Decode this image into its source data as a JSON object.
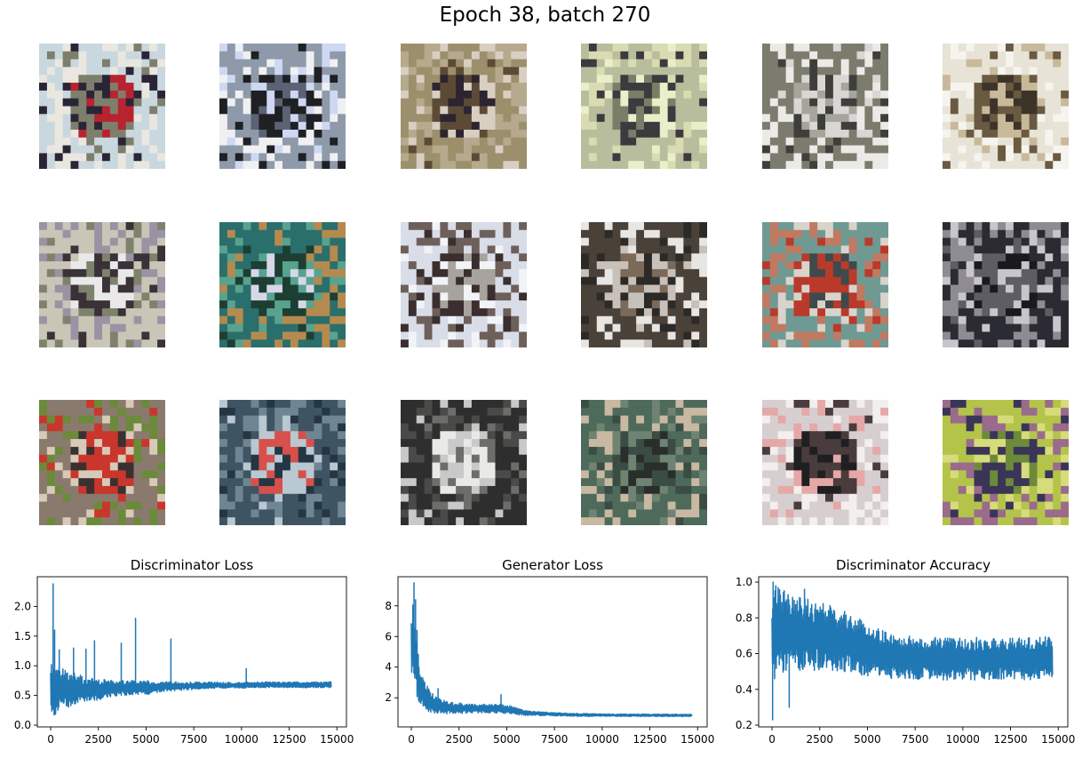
{
  "figure": {
    "title": "Epoch 38, batch 270",
    "line_color": "#1f77b4"
  },
  "sample_images": [
    {
      "palette": [
        "#c9d7df",
        "#7d7f6c",
        "#2a2536",
        "#b8232f",
        "#e9e7df"
      ]
    },
    {
      "palette": [
        "#8e9aa9",
        "#1f2024",
        "#cfd8f2",
        "#5a6274",
        "#f0f0f2"
      ]
    },
    {
      "palette": [
        "#9c8f6c",
        "#5d4a35",
        "#d8cfc2",
        "#2c2430",
        "#b7a98d"
      ]
    },
    {
      "palette": [
        "#b8bd9d",
        "#3b3a3e",
        "#e9efc9",
        "#7b7d67",
        "#d9dcb0"
      ]
    },
    {
      "palette": [
        "#7c7c6e",
        "#d9d6d4",
        "#3e3f3b",
        "#a6a59b",
        "#eceae6"
      ]
    },
    {
      "palette": [
        "#e7e3d6",
        "#6a5a42",
        "#c8b99b",
        "#3d3429",
        "#f6f4ee"
      ]
    },
    {
      "palette": [
        "#c9c6b8",
        "#3a3236",
        "#7e826b",
        "#e9e9ea",
        "#9b92a3"
      ]
    },
    {
      "palette": [
        "#2a6f6b",
        "#1d3f33",
        "#58a28f",
        "#d6d7e7",
        "#b58a4f"
      ]
    },
    {
      "palette": [
        "#d9dde8",
        "#3a2f2e",
        "#f2f3f7",
        "#a8a39c",
        "#6d605a"
      ]
    },
    {
      "palette": [
        "#4a4239",
        "#c8c1b9",
        "#2c2a26",
        "#7b6a5a",
        "#e8e6e3"
      ]
    },
    {
      "palette": [
        "#6f9a93",
        "#b93a2b",
        "#d8d4cc",
        "#3f4a4b",
        "#c07a62"
      ]
    },
    {
      "palette": [
        "#2b2b33",
        "#5e5d63",
        "#c8c6cc",
        "#1a1a1d",
        "#8f8b93"
      ]
    },
    {
      "palette": [
        "#8a7a6e",
        "#c9362c",
        "#d9c9b9",
        "#3a3030",
        "#6b8a3a"
      ]
    },
    {
      "palette": [
        "#3f5463",
        "#b9c8d1",
        "#243642",
        "#d7504b",
        "#6f8692"
      ]
    },
    {
      "palette": [
        "#2e2e2e",
        "#c9c9c9",
        "#6e6d69",
        "#e9e9e8",
        "#4a4a48"
      ]
    },
    {
      "palette": [
        "#4d6a5a",
        "#3a4c44",
        "#6f8372",
        "#2a2e2a",
        "#c9b9a2"
      ]
    },
    {
      "palette": [
        "#d7cfcf",
        "#4a3c3c",
        "#e6a7a7",
        "#1f1f22",
        "#f2efee"
      ]
    },
    {
      "palette": [
        "#b4c44a",
        "#3a3458",
        "#d7dc7a",
        "#6c8a39",
        "#9a6b8b"
      ]
    }
  ],
  "chart_data": [
    {
      "type": "line",
      "title": "Discriminator Loss",
      "xlabel": "",
      "ylabel": "",
      "xlim": [
        -700,
        15500
      ],
      "ylim": [
        -0.03,
        2.5
      ],
      "xticks": [
        "0",
        "2500",
        "5000",
        "7500",
        "10000",
        "12500",
        "15000"
      ],
      "yticks": [
        "0.0",
        "0.5",
        "1.0",
        "1.5",
        "2.0"
      ],
      "series": [
        {
          "x": [
            0,
            100,
            150,
            250,
            400,
            600,
            1000,
            1500,
            2000,
            2500,
            3000,
            4000,
            5000,
            6000,
            7000,
            8000,
            9000,
            10000,
            11000,
            12000,
            13000,
            14000,
            14700
          ],
          "center": [
            0.65,
            0.6,
            0.6,
            0.62,
            0.6,
            0.6,
            0.6,
            0.6,
            0.6,
            0.6,
            0.62,
            0.62,
            0.63,
            0.65,
            0.66,
            0.67,
            0.67,
            0.67,
            0.68,
            0.68,
            0.68,
            0.68,
            0.68
          ],
          "spread": [
            0.45,
            0.5,
            0.5,
            0.45,
            0.4,
            0.35,
            0.3,
            0.25,
            0.2,
            0.18,
            0.15,
            0.13,
            0.12,
            0.08,
            0.07,
            0.06,
            0.05,
            0.05,
            0.05,
            0.05,
            0.05,
            0.05,
            0.05
          ],
          "spikes": [
            [
              130,
              2.38
            ],
            [
              210,
              1.6
            ],
            [
              450,
              1.27
            ],
            [
              1200,
              1.3
            ],
            [
              1850,
              1.28
            ],
            [
              2300,
              1.42
            ],
            [
              3700,
              1.38
            ],
            [
              4450,
              1.8
            ],
            [
              6300,
              1.45
            ],
            [
              10250,
              0.95
            ]
          ]
        }
      ]
    },
    {
      "type": "line",
      "title": "Generator Loss",
      "xlabel": "",
      "ylabel": "",
      "xlim": [
        -700,
        15500
      ],
      "ylim": [
        0.1,
        9.9
      ],
      "xticks": [
        "0",
        "2500",
        "5000",
        "7500",
        "10000",
        "12500",
        "15000"
      ],
      "yticks": [
        "2",
        "4",
        "6",
        "8"
      ],
      "series": [
        {
          "x": [
            0,
            100,
            150,
            250,
            400,
            600,
            1000,
            1500,
            2000,
            2500,
            3000,
            4000,
            5000,
            6000,
            7000,
            8000,
            9000,
            10000,
            11000,
            12000,
            13000,
            14000,
            14700
          ],
          "center": [
            4.5,
            6.0,
            5.0,
            4.0,
            3.0,
            2.3,
            1.7,
            1.45,
            1.35,
            1.3,
            1.3,
            1.3,
            1.25,
            1.0,
            0.95,
            0.9,
            0.88,
            0.87,
            0.86,
            0.86,
            0.86,
            0.85,
            0.85
          ],
          "spread": [
            2.5,
            2.5,
            2.0,
            1.8,
            1.5,
            1.0,
            0.7,
            0.5,
            0.4,
            0.35,
            0.3,
            0.3,
            0.3,
            0.15,
            0.12,
            0.1,
            0.1,
            0.08,
            0.08,
            0.08,
            0.08,
            0.08,
            0.08
          ],
          "spikes": [
            [
              140,
              9.5
            ],
            [
              220,
              8.4
            ],
            [
              300,
              6.4
            ],
            [
              700,
              3.0
            ],
            [
              1400,
              2.6
            ],
            [
              4700,
              2.2
            ]
          ]
        }
      ]
    },
    {
      "type": "line",
      "title": "Discriminator Accuracy",
      "xlabel": "",
      "ylabel": "",
      "xlim": [
        -700,
        15500
      ],
      "ylim": [
        0.19,
        1.03
      ],
      "xticks": [
        "0",
        "2500",
        "5000",
        "7500",
        "10000",
        "12500",
        "15000"
      ],
      "yticks": [
        "0.2",
        "0.4",
        "0.6",
        "0.8",
        "1.0"
      ],
      "series": [
        {
          "x": [
            0,
            100,
            200,
            400,
            700,
            1000,
            1500,
            2000,
            2500,
            3000,
            4000,
            5000,
            6000,
            7000,
            8000,
            9000,
            10000,
            11000,
            12000,
            13000,
            14000,
            14700
          ],
          "center": [
            0.7,
            0.72,
            0.73,
            0.73,
            0.72,
            0.72,
            0.71,
            0.7,
            0.7,
            0.69,
            0.66,
            0.62,
            0.59,
            0.58,
            0.57,
            0.57,
            0.57,
            0.57,
            0.57,
            0.57,
            0.57,
            0.58
          ],
          "spread": [
            0.25,
            0.27,
            0.26,
            0.24,
            0.23,
            0.22,
            0.21,
            0.2,
            0.19,
            0.18,
            0.17,
            0.15,
            0.13,
            0.12,
            0.12,
            0.12,
            0.12,
            0.12,
            0.12,
            0.12,
            0.12,
            0.12
          ],
          "spikes": [
            [
              30,
              0.23
            ],
            [
              60,
              1.0
            ],
            [
              200,
              0.98
            ],
            [
              900,
              0.3
            ],
            [
              1700,
              0.96
            ]
          ]
        }
      ]
    }
  ]
}
